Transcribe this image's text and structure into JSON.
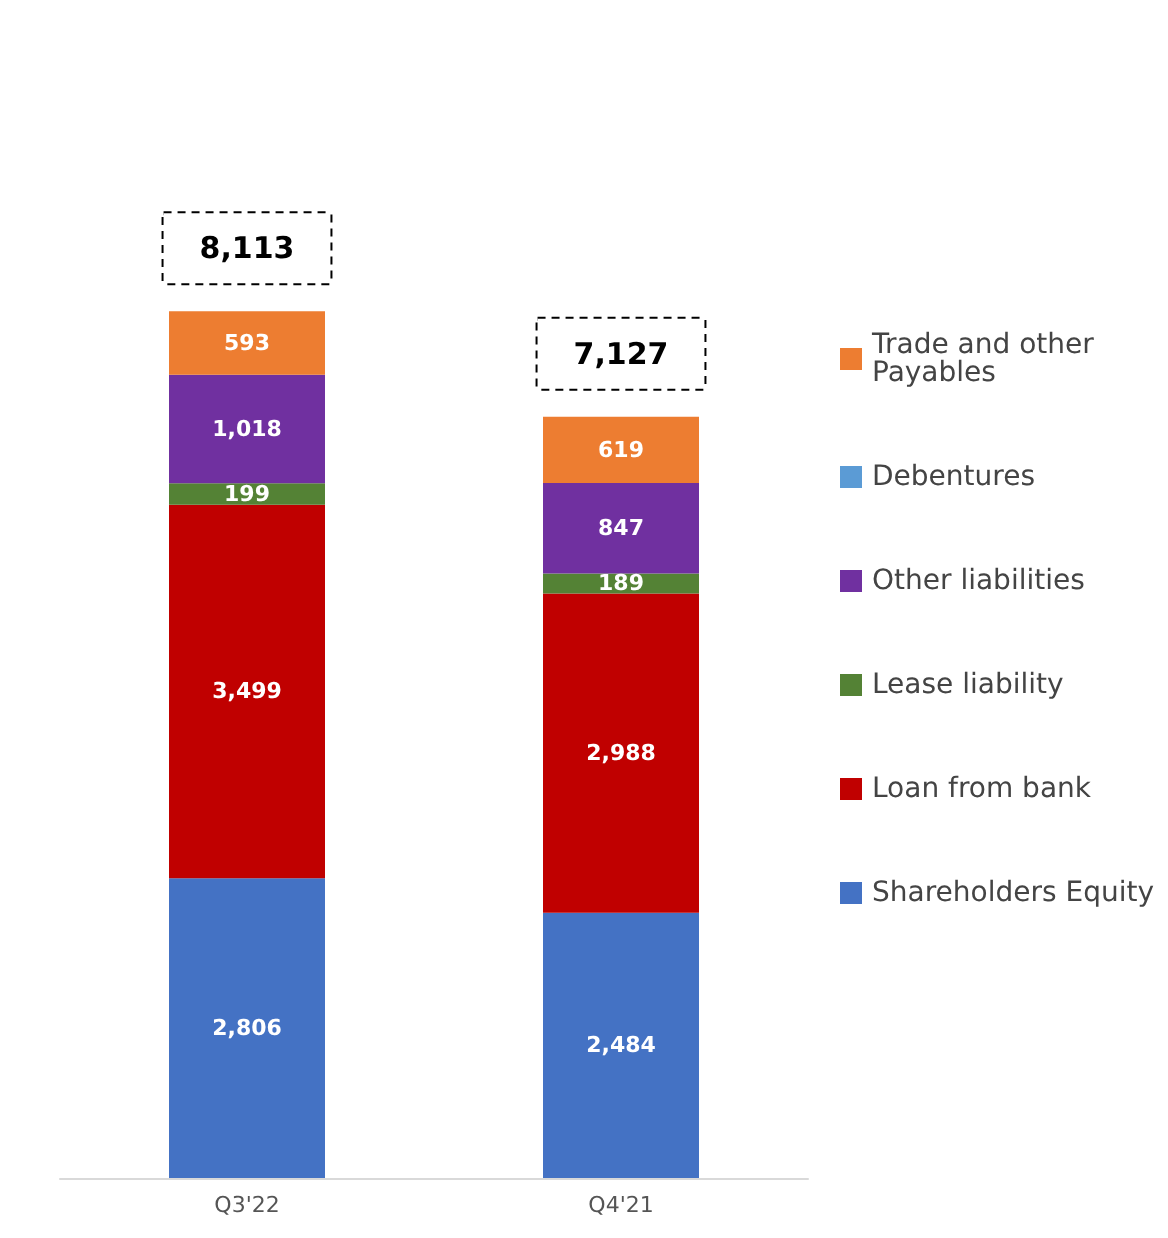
{
  "chart_data": {
    "type": "bar",
    "stacked": true,
    "categories": [
      "Q3'22",
      "Q4'21"
    ],
    "series": [
      {
        "name": "Shareholders Equity",
        "color": "#4472c4",
        "values": [
          2806,
          2484
        ],
        "value_labels": [
          "2,806",
          "2,484"
        ]
      },
      {
        "name": "Loan from bank",
        "color": "#c00000",
        "values": [
          3499,
          2988
        ],
        "value_labels": [
          "3,499",
          "2,988"
        ]
      },
      {
        "name": "Lease liability",
        "color": "#548235",
        "values": [
          199,
          189
        ],
        "value_labels": [
          "199",
          "189"
        ]
      },
      {
        "name": "Other liabilities",
        "color": "#7030a0",
        "values": [
          1018,
          847
        ],
        "value_labels": [
          "1,018",
          "847"
        ]
      },
      {
        "name": "Debentures",
        "color": "#5b9bd5",
        "values": [
          null,
          null
        ]
      },
      {
        "name": "Trade and other Payables",
        "color": "#ed7d31",
        "values": [
          593,
          619
        ],
        "value_labels": [
          "593",
          "619"
        ]
      }
    ],
    "totals": [
      "8,113",
      "7,127"
    ],
    "legend": "right",
    "grid": false
  }
}
